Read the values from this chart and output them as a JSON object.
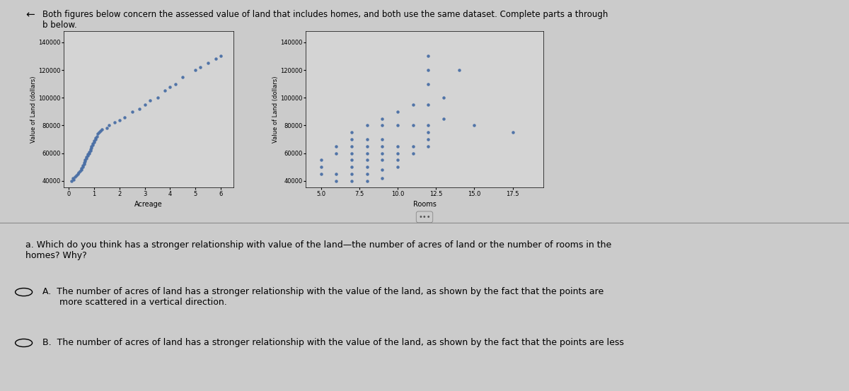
{
  "background_color": "#cbcbcb",
  "dot_color": "#4a6fa5",
  "dot_size": 5,
  "plot_bg": "#d4d4d4",
  "acreage_x": [
    0.1,
    0.15,
    0.2,
    0.25,
    0.3,
    0.35,
    0.4,
    0.45,
    0.5,
    0.5,
    0.55,
    0.55,
    0.6,
    0.6,
    0.65,
    0.65,
    0.7,
    0.7,
    0.75,
    0.75,
    0.8,
    0.8,
    0.85,
    0.85,
    0.9,
    0.9,
    0.95,
    0.95,
    1.0,
    1.0,
    1.05,
    1.05,
    1.1,
    1.15,
    1.2,
    1.25,
    1.3,
    1.5,
    1.6,
    1.8,
    2.0,
    2.2,
    2.5,
    2.8,
    3.0,
    3.2,
    3.5,
    3.8,
    4.0,
    4.2,
    4.5,
    5.0,
    5.2,
    5.5,
    5.8,
    6.0
  ],
  "acreage_y": [
    40000,
    42000,
    41000,
    43000,
    44000,
    45000,
    46000,
    47000,
    48000,
    49000,
    50000,
    51000,
    52000,
    53000,
    54000,
    55000,
    56000,
    57000,
    58000,
    59000,
    60000,
    61000,
    62000,
    63000,
    64000,
    65000,
    66000,
    67000,
    68000,
    69000,
    70000,
    71000,
    72000,
    74000,
    75000,
    76000,
    77000,
    78000,
    80000,
    82000,
    84000,
    86000,
    90000,
    92000,
    95000,
    98000,
    100000,
    105000,
    108000,
    110000,
    115000,
    120000,
    122000,
    125000,
    128000,
    130000
  ],
  "rooms_x": [
    5,
    5,
    5,
    6,
    6,
    6,
    6,
    7,
    7,
    7,
    7,
    7,
    7,
    7,
    7,
    8,
    8,
    8,
    8,
    8,
    8,
    8,
    8,
    9,
    9,
    9,
    9,
    9,
    9,
    9,
    9,
    10,
    10,
    10,
    10,
    10,
    10,
    11,
    11,
    11,
    11,
    12,
    12,
    12,
    12,
    12,
    12,
    12,
    12,
    13,
    13,
    14,
    15,
    17.5
  ],
  "rooms_y": [
    45000,
    50000,
    55000,
    40000,
    45000,
    60000,
    65000,
    40000,
    45000,
    50000,
    55000,
    60000,
    65000,
    70000,
    75000,
    40000,
    45000,
    50000,
    55000,
    60000,
    65000,
    70000,
    80000,
    42000,
    48000,
    55000,
    60000,
    65000,
    70000,
    80000,
    85000,
    50000,
    55000,
    60000,
    65000,
    80000,
    90000,
    60000,
    65000,
    80000,
    95000,
    65000,
    70000,
    75000,
    80000,
    95000,
    110000,
    120000,
    130000,
    85000,
    100000,
    120000,
    80000,
    75000
  ],
  "acreage_xlim": [
    -0.2,
    6.5
  ],
  "acreage_xticks": [
    0,
    1,
    2,
    3,
    4,
    5,
    6
  ],
  "acreage_ylim": [
    35000,
    148000
  ],
  "acreage_yticks": [
    40000,
    60000,
    80000,
    100000,
    120000,
    140000
  ],
  "acreage_xlabel": "Acreage",
  "acreage_ylabel": "Value of Land (dollars)",
  "rooms_xlim": [
    4.0,
    19.5
  ],
  "rooms_xticks": [
    5.0,
    7.5,
    10.0,
    12.5,
    15.0,
    17.5
  ],
  "rooms_ylim": [
    35000,
    148000
  ],
  "rooms_yticks": [
    40000,
    60000,
    80000,
    100000,
    120000,
    140000
  ],
  "rooms_xlabel": "Rooms",
  "rooms_ylabel": "Value of Land (dollars)",
  "header_text": "Both figures below concern the assessed value of land that includes homes, and both use the same dataset. Complete parts a through\nb below.",
  "arrow_symbol": "←",
  "question_a": "a. Which do you think has a stronger relationship with value of the land—the number of acres of land or the number of rooms in the\nhomes? Why?",
  "option_A_text": "A.  The number of acres of land has a stronger relationship with the value of the land, as shown by the fact that the points are\n      more scattered in a vertical direction.",
  "option_B_text": "B.  The number of acres of land has a stronger relationship with the value of the land, as shown by the fact that the points are less"
}
